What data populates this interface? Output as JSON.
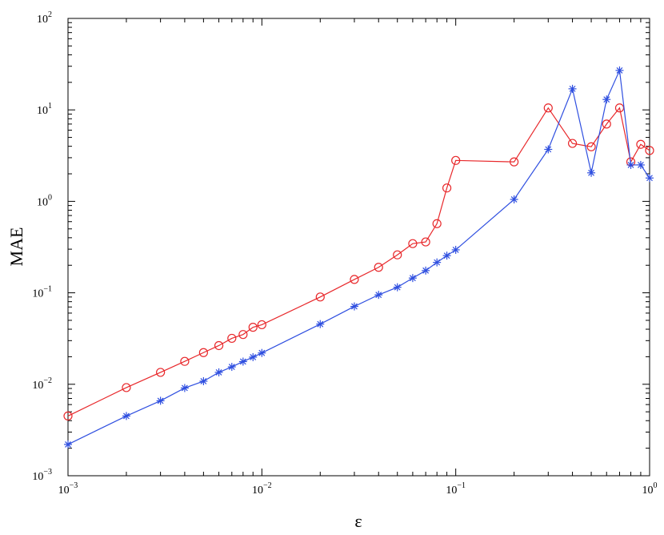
{
  "chart_data": {
    "type": "line",
    "title": "",
    "xlabel": "ε",
    "ylabel": "MAE",
    "xscale": "log",
    "yscale": "log",
    "xlim": [
      0.001,
      1
    ],
    "ylim": [
      0.001,
      100
    ],
    "grid": false,
    "x_ticks": [
      {
        "value": 0.001,
        "base": "10",
        "exp": "−3"
      },
      {
        "value": 0.01,
        "base": "10",
        "exp": "−2"
      },
      {
        "value": 0.1,
        "base": "10",
        "exp": "−1"
      },
      {
        "value": 1,
        "base": "10",
        "exp": "0"
      }
    ],
    "y_ticks": [
      {
        "value": 0.001,
        "base": "10",
        "exp": "−3"
      },
      {
        "value": 0.01,
        "base": "10",
        "exp": "−2"
      },
      {
        "value": 0.1,
        "base": "10",
        "exp": "−1"
      },
      {
        "value": 1,
        "base": "10",
        "exp": "0"
      },
      {
        "value": 10,
        "base": "10",
        "exp": "1"
      },
      {
        "value": 100,
        "base": "10",
        "exp": "2"
      }
    ],
    "series": [
      {
        "color": "#e8282b",
        "marker": "circle",
        "x": [
          0.001,
          0.002,
          0.003,
          0.004,
          0.005,
          0.006,
          0.007,
          0.008,
          0.009,
          0.01,
          0.02,
          0.03,
          0.04,
          0.05,
          0.06,
          0.07,
          0.08,
          0.09,
          0.1,
          0.2,
          0.3,
          0.4,
          0.5,
          0.6,
          0.7,
          0.8,
          0.9,
          1.0
        ],
        "y": [
          0.0045,
          0.0092,
          0.0135,
          0.0178,
          0.0222,
          0.0265,
          0.0318,
          0.035,
          0.042,
          0.0448,
          0.09,
          0.14,
          0.19,
          0.26,
          0.345,
          0.36,
          0.57,
          1.4,
          2.8,
          2.7,
          10.5,
          4.3,
          3.95,
          7.0,
          10.5,
          2.7,
          4.2,
          3.6
        ]
      },
      {
        "color": "#2f4fe0",
        "marker": "asterisk",
        "x": [
          0.001,
          0.002,
          0.003,
          0.004,
          0.005,
          0.006,
          0.007,
          0.008,
          0.009,
          0.01,
          0.02,
          0.03,
          0.04,
          0.05,
          0.06,
          0.07,
          0.08,
          0.09,
          0.1,
          0.2,
          0.3,
          0.4,
          0.5,
          0.6,
          0.7,
          0.8,
          0.9,
          1.0
        ],
        "y": [
          0.0022,
          0.0045,
          0.0066,
          0.0091,
          0.0108,
          0.0135,
          0.0155,
          0.0177,
          0.0198,
          0.022,
          0.0455,
          0.071,
          0.095,
          0.115,
          0.145,
          0.175,
          0.215,
          0.255,
          0.295,
          1.05,
          3.7,
          17.0,
          2.05,
          13.0,
          27.0,
          2.5,
          2.5,
          1.8
        ]
      }
    ]
  }
}
